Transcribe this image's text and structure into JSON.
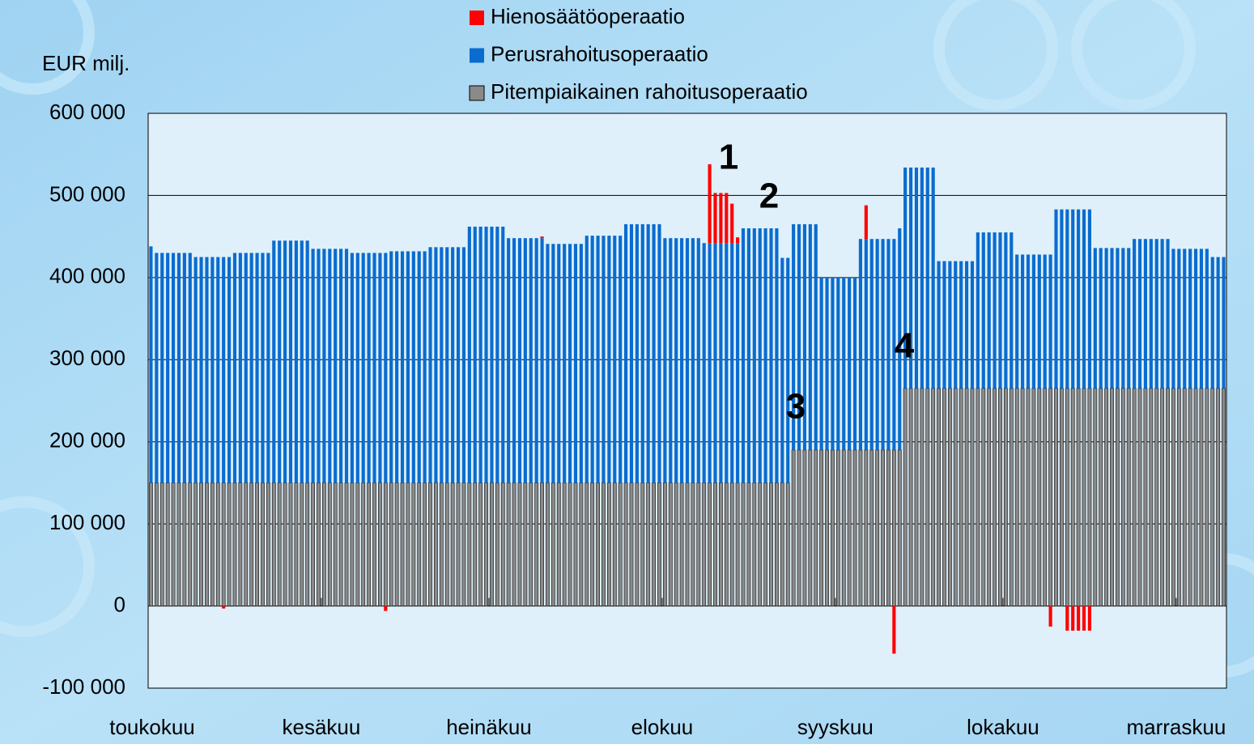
{
  "chart_data": {
    "type": "bar",
    "stacked": true,
    "y_label": "EUR milj.",
    "annotations": [
      "1",
      "2",
      "3",
      "4"
    ],
    "ylim": [
      -100000,
      600000
    ],
    "yticks": [
      {
        "value": -100000,
        "label": "-100 000"
      },
      0,
      {
        "value": 100000,
        "label": "100 000"
      },
      {
        "value": 200000,
        "label": "200 000"
      },
      {
        "value": 300000,
        "label": "300 000"
      },
      {
        "value": 400000,
        "label": "400 000"
      },
      {
        "value": 500000,
        "label": "500 000"
      },
      {
        "value": 600000,
        "label": "600 000"
      }
    ],
    "grid": true,
    "legend": "top",
    "categories": [
      "toukokuu",
      null,
      null,
      null,
      null,
      null,
      null,
      null,
      null,
      null,
      null,
      null,
      null,
      null,
      null,
      null,
      null,
      null,
      null,
      null,
      null,
      null,
      null,
      null,
      null,
      null,
      null,
      null,
      null,
      null,
      null,
      "kesäkuu",
      null,
      null,
      null,
      null,
      null,
      null,
      null,
      null,
      null,
      null,
      null,
      null,
      null,
      null,
      null,
      null,
      null,
      null,
      null,
      null,
      null,
      null,
      null,
      null,
      null,
      null,
      null,
      null,
      null,
      "heinäkuu",
      null,
      null,
      null,
      null,
      null,
      null,
      null,
      null,
      null,
      null,
      null,
      null,
      null,
      null,
      null,
      null,
      null,
      null,
      null,
      null,
      null,
      null,
      null,
      null,
      null,
      null,
      null,
      null,
      null,
      null,
      "elokuu",
      null,
      null,
      null,
      null,
      null,
      null,
      null,
      null,
      null,
      null,
      null,
      null,
      null,
      null,
      null,
      null,
      null,
      null,
      null,
      null,
      null,
      null,
      null,
      null,
      null,
      null,
      null,
      null,
      null,
      null,
      "syyskuu",
      null,
      null,
      null,
      null,
      null,
      null,
      null,
      null,
      null,
      null,
      null,
      null,
      null,
      null,
      null,
      null,
      null,
      null,
      null,
      null,
      null,
      null,
      null,
      null,
      null,
      null,
      null,
      null,
      null,
      "lokakuu",
      null,
      null,
      null,
      null,
      null,
      null,
      null,
      null,
      null,
      null,
      null,
      null,
      null,
      null,
      null,
      null,
      null,
      null,
      null,
      null,
      null,
      null,
      null,
      null,
      null,
      null,
      null,
      null,
      null,
      null,
      "marraskuu",
      null,
      null,
      null,
      null,
      null,
      null,
      null,
      null
    ],
    "series": [
      {
        "name": "Pitempiaikainen rahoitusoperaatio",
        "color": "#8a8a8a",
        "values": [
          150000,
          150000,
          150000,
          150000,
          150000,
          150000,
          150000,
          150000,
          150000,
          150000,
          150000,
          150000,
          150000,
          150000,
          150000,
          150000,
          150000,
          150000,
          150000,
          150000,
          150000,
          150000,
          150000,
          150000,
          150000,
          150000,
          150000,
          150000,
          150000,
          150000,
          150000,
          150000,
          150000,
          150000,
          150000,
          150000,
          150000,
          150000,
          150000,
          150000,
          150000,
          150000,
          150000,
          150000,
          150000,
          150000,
          150000,
          150000,
          150000,
          150000,
          150000,
          150000,
          150000,
          150000,
          150000,
          150000,
          150000,
          150000,
          150000,
          150000,
          150000,
          150000,
          150000,
          150000,
          150000,
          150000,
          150000,
          150000,
          150000,
          150000,
          150000,
          150000,
          150000,
          150000,
          150000,
          150000,
          150000,
          150000,
          150000,
          150000,
          150000,
          150000,
          150000,
          150000,
          150000,
          150000,
          150000,
          150000,
          150000,
          150000,
          150000,
          150000,
          150000,
          150000,
          150000,
          150000,
          150000,
          150000,
          150000,
          150000,
          150000,
          150000,
          150000,
          150000,
          150000,
          150000,
          150000,
          150000,
          150000,
          150000,
          150000,
          150000,
          150000,
          150000,
          150000,
          190000,
          190000,
          190000,
          190000,
          190000,
          190000,
          190000,
          190000,
          190000,
          190000,
          190000,
          190000,
          190000,
          190000,
          190000,
          190000,
          190000,
          190000,
          190000,
          190000,
          265000,
          265000,
          265000,
          265000,
          265000,
          265000,
          265000,
          265000,
          265000,
          265000,
          265000,
          265000,
          265000,
          265000,
          265000,
          265000,
          265000,
          265000,
          265000,
          265000,
          265000,
          265000,
          265000,
          265000,
          265000,
          265000,
          265000,
          265000,
          265000,
          265000,
          265000,
          265000,
          265000,
          265000,
          265000,
          265000,
          265000,
          265000,
          265000,
          265000,
          265000,
          265000,
          265000,
          265000,
          265000,
          265000,
          265000,
          265000,
          265000,
          265000,
          265000,
          265000,
          265000,
          265000,
          265000,
          265000,
          265000,
          265000
        ]
      },
      {
        "name": "Perusrahoitusoperaatio",
        "color": "#0a6ccf",
        "values": [
          288000,
          280000,
          280000,
          280000,
          280000,
          280000,
          280000,
          280000,
          275000,
          275000,
          275000,
          275000,
          275000,
          275000,
          275000,
          280000,
          280000,
          280000,
          280000,
          280000,
          280000,
          280000,
          295000,
          295000,
          295000,
          295000,
          295000,
          295000,
          295000,
          285000,
          285000,
          285000,
          285000,
          285000,
          285000,
          285000,
          280000,
          280000,
          280000,
          280000,
          280000,
          280000,
          280000,
          282000,
          282000,
          282000,
          282000,
          282000,
          282000,
          282000,
          287000,
          287000,
          287000,
          287000,
          287000,
          287000,
          287000,
          312000,
          312000,
          312000,
          312000,
          312000,
          312000,
          312000,
          298000,
          298000,
          298000,
          298000,
          298000,
          298000,
          298000,
          291000,
          291000,
          291000,
          291000,
          291000,
          291000,
          291000,
          301000,
          301000,
          301000,
          301000,
          301000,
          301000,
          301000,
          315000,
          315000,
          315000,
          315000,
          315000,
          315000,
          315000,
          298000,
          298000,
          298000,
          298000,
          298000,
          298000,
          298000,
          292000,
          292000,
          292000,
          292000,
          292000,
          292000,
          292000,
          310000,
          310000,
          310000,
          310000,
          310000,
          310000,
          310000,
          274000,
          274000,
          275000,
          275000,
          275000,
          275000,
          275000,
          210000,
          210000,
          210000,
          210000,
          210000,
          210000,
          210000,
          257000,
          257000,
          257000,
          257000,
          257000,
          257000,
          257000,
          270000,
          269000,
          269000,
          269000,
          269000,
          269000,
          269000,
          155000,
          155000,
          155000,
          155000,
          155000,
          155000,
          155000,
          190000,
          190000,
          190000,
          190000,
          190000,
          190000,
          190000,
          163000,
          163000,
          163000,
          163000,
          163000,
          163000,
          163000,
          218000,
          218000,
          218000,
          218000,
          218000,
          218000,
          218000,
          171000,
          171000,
          171000,
          171000,
          171000,
          171000,
          171000,
          182000,
          182000,
          182000,
          182000,
          182000,
          182000,
          182000,
          170000,
          170000,
          170000,
          170000,
          170000,
          170000,
          170000,
          160000,
          160000,
          160000
        ]
      },
      {
        "name": "Hienosäätöoperaatio",
        "color": "#ff0000",
        "values": [
          0,
          0,
          0,
          0,
          0,
          0,
          0,
          0,
          0,
          0,
          0,
          0,
          0,
          -3000,
          0,
          0,
          0,
          0,
          0,
          0,
          0,
          0,
          0,
          0,
          0,
          0,
          0,
          0,
          0,
          0,
          0,
          0,
          0,
          0,
          0,
          0,
          0,
          0,
          0,
          0,
          0,
          0,
          -6000,
          0,
          0,
          0,
          0,
          0,
          0,
          0,
          0,
          0,
          0,
          0,
          0,
          0,
          0,
          0,
          0,
          0,
          0,
          0,
          0,
          0,
          0,
          0,
          0,
          0,
          0,
          0,
          2000,
          0,
          0,
          0,
          0,
          0,
          0,
          0,
          0,
          0,
          0,
          0,
          0,
          0,
          0,
          0,
          0,
          0,
          0,
          0,
          0,
          0,
          0,
          0,
          0,
          0,
          0,
          0,
          0,
          0,
          96000,
          61000,
          61000,
          61000,
          48000,
          7000,
          0,
          0,
          0,
          0,
          0,
          0,
          0,
          0,
          0,
          0,
          0,
          0,
          0,
          0,
          0,
          0,
          0,
          0,
          0,
          0,
          0,
          0,
          41000,
          0,
          0,
          0,
          0,
          -58000,
          0,
          0,
          0,
          0,
          0,
          0,
          0,
          0,
          0,
          0,
          0,
          0,
          0,
          0,
          0,
          0,
          0,
          0,
          0,
          0,
          0,
          0,
          0,
          0,
          0,
          0,
          0,
          -25000,
          0,
          0,
          -30000,
          -30000,
          -30000,
          -30000,
          -30000,
          0,
          0,
          0,
          0,
          0,
          0,
          0,
          0,
          0,
          0,
          0,
          0,
          0,
          0,
          0,
          0,
          0,
          0,
          0,
          0,
          0,
          0,
          0,
          0
        ]
      }
    ]
  }
}
